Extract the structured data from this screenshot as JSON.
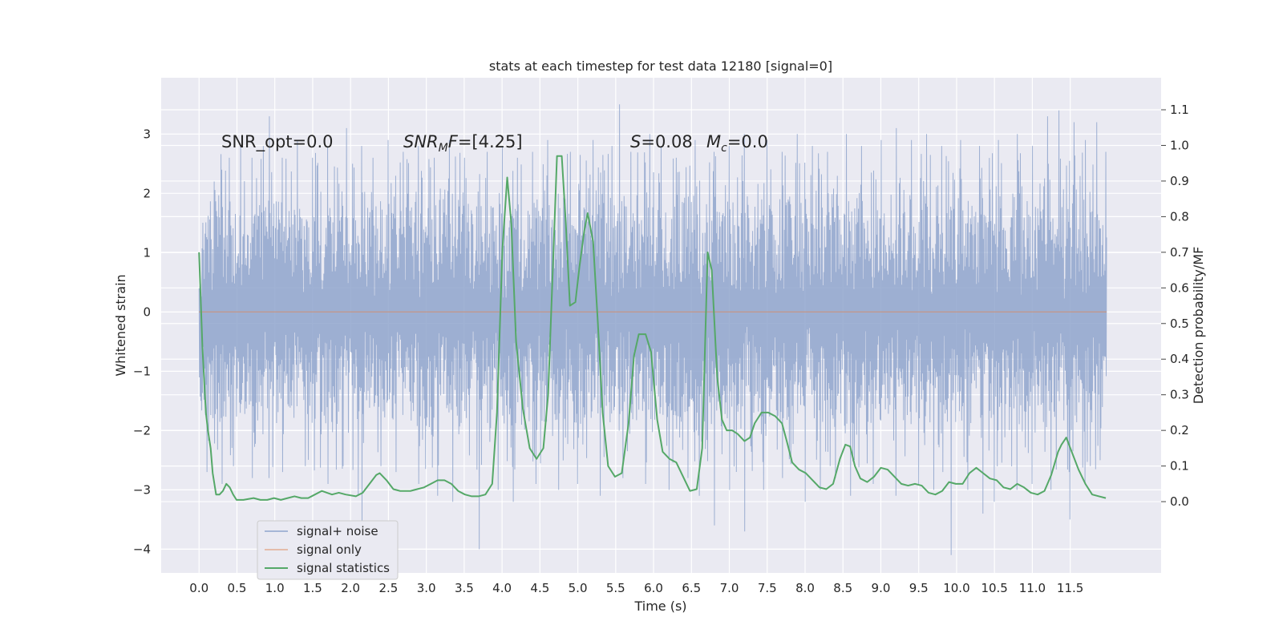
{
  "chart_data": {
    "type": "line",
    "title": "stats at each timestep for test data 12180 [signal=0]",
    "xlabel": "Time (s)",
    "ylabel": "Whitened strain",
    "y2label": "Detection probability/MF",
    "xlim": [
      -0.5,
      12.7
    ],
    "ylim": [
      -4.4,
      3.95
    ],
    "y2lim": [
      -0.2,
      1.19
    ],
    "xticks": [
      "0.0",
      "0.5",
      "1.0",
      "1.5",
      "2.0",
      "2.5",
      "3.0",
      "3.5",
      "4.0",
      "4.5",
      "5.0",
      "5.5",
      "6.0",
      "6.5",
      "7.0",
      "7.5",
      "8.0",
      "8.5",
      "9.0",
      "9.5",
      "10.0",
      "10.5",
      "11.0",
      "11.5"
    ],
    "yticks": [
      "3",
      "2",
      "1",
      "0",
      "−1",
      "−2",
      "−3",
      "−4"
    ],
    "y2ticks": [
      "1.1",
      "1.0",
      "0.9",
      "0.8",
      "0.7",
      "0.6",
      "0.5",
      "0.4",
      "0.3",
      "0.2",
      "0.1",
      "0.0"
    ],
    "grid": true,
    "legend_position": "lower-left",
    "legend": [
      "signal+ noise",
      "signal only",
      "signal statistics"
    ],
    "annotations": {
      "snr_opt": "SNR_opt=0.0",
      "snr_mf": "=[4.25]",
      "s_value": "=0.08",
      "mc_value": "=0.0"
    },
    "colors": {
      "noise": "#8fa4cc",
      "signal": "#dd8452",
      "stats": "#55a868",
      "background": "#eaeaf2",
      "grid": "#ffffff"
    },
    "series": [
      {
        "name": "signal+ noise",
        "axis": "left",
        "x_range": [
          0.0,
          11.98
        ],
        "typical_band": [
          -1.6,
          1.6
        ],
        "peaks_up": [
          [
            0.2,
            2.2
          ],
          [
            0.3,
            2.4
          ],
          [
            0.4,
            2.6
          ],
          [
            0.55,
            2.8
          ],
          [
            0.7,
            2.6
          ],
          [
            0.85,
            2.8
          ],
          [
            0.93,
            3.3
          ],
          [
            1.1,
            2.6
          ],
          [
            1.3,
            2.9
          ],
          [
            1.5,
            2.6
          ],
          [
            1.7,
            2.8
          ],
          [
            1.95,
            3.1
          ],
          [
            2.15,
            2.8
          ],
          [
            2.3,
            2.6
          ],
          [
            2.5,
            2.9
          ],
          [
            2.7,
            2.7
          ],
          [
            2.9,
            2.8
          ],
          [
            3.1,
            2.6
          ],
          [
            3.3,
            2.9
          ],
          [
            3.5,
            2.6
          ],
          [
            3.8,
            2.7
          ],
          [
            4.0,
            2.8
          ],
          [
            4.2,
            2.6
          ],
          [
            4.4,
            2.7
          ],
          [
            4.6,
            2.9
          ],
          [
            4.9,
            2.7
          ],
          [
            5.2,
            2.9
          ],
          [
            5.45,
            2.8
          ],
          [
            5.55,
            3.5
          ],
          [
            5.7,
            2.7
          ],
          [
            5.95,
            3.0
          ],
          [
            6.1,
            2.8
          ],
          [
            6.3,
            2.6
          ],
          [
            6.55,
            2.9
          ],
          [
            6.8,
            2.7
          ],
          [
            7.0,
            2.8
          ],
          [
            7.2,
            3.0
          ],
          [
            7.5,
            2.9
          ],
          [
            7.7,
            2.7
          ],
          [
            7.9,
            3.0
          ],
          [
            8.1,
            2.8
          ],
          [
            8.3,
            2.7
          ],
          [
            8.55,
            3.0
          ],
          [
            8.75,
            2.8
          ],
          [
            9.0,
            2.9
          ],
          [
            9.2,
            3.1
          ],
          [
            9.4,
            2.9
          ],
          [
            9.6,
            3.0
          ],
          [
            9.8,
            2.8
          ],
          [
            10.05,
            2.9
          ],
          [
            10.3,
            2.8
          ],
          [
            10.55,
            2.9
          ],
          [
            10.8,
            3.0
          ],
          [
            11.0,
            2.8
          ],
          [
            11.2,
            3.3
          ],
          [
            11.35,
            3.4
          ],
          [
            11.55,
            3.2
          ],
          [
            11.7,
            2.9
          ],
          [
            11.85,
            3.2
          ],
          [
            11.97,
            2.7
          ]
        ],
        "peaks_down": [
          [
            0.1,
            -2.7
          ],
          [
            0.3,
            -2.9
          ],
          [
            0.45,
            -2.6
          ],
          [
            0.7,
            -2.8
          ],
          [
            0.92,
            -2.8
          ],
          [
            1.1,
            -2.7
          ],
          [
            1.4,
            -2.6
          ],
          [
            1.7,
            -2.9
          ],
          [
            1.9,
            -2.6
          ],
          [
            2.1,
            -3.1
          ],
          [
            2.15,
            -3.6
          ],
          [
            2.4,
            -2.6
          ],
          [
            2.6,
            -2.7
          ],
          [
            2.9,
            -2.9
          ],
          [
            3.15,
            -3.1
          ],
          [
            3.35,
            -3.2
          ],
          [
            3.7,
            -4.0
          ],
          [
            3.95,
            -3.0
          ],
          [
            4.15,
            -3.2
          ],
          [
            4.45,
            -2.9
          ],
          [
            4.75,
            -3.0
          ],
          [
            5.0,
            -2.9
          ],
          [
            5.3,
            -3.1
          ],
          [
            5.6,
            -2.8
          ],
          [
            5.9,
            -2.9
          ],
          [
            6.2,
            -3.0
          ],
          [
            6.45,
            -2.8
          ],
          [
            6.6,
            -3.1
          ],
          [
            6.8,
            -3.6
          ],
          [
            7.0,
            -3.0
          ],
          [
            7.2,
            -3.7
          ],
          [
            7.45,
            -3.0
          ],
          [
            7.7,
            -2.8
          ],
          [
            8.0,
            -3.2
          ],
          [
            8.2,
            -3.0
          ],
          [
            8.4,
            -2.8
          ],
          [
            8.6,
            -3.1
          ],
          [
            8.9,
            -2.9
          ],
          [
            9.2,
            -3.1
          ],
          [
            9.5,
            -2.9
          ],
          [
            9.7,
            -3.0
          ],
          [
            9.93,
            -4.1
          ],
          [
            10.15,
            -3.0
          ],
          [
            10.35,
            -3.4
          ],
          [
            10.5,
            -3.2
          ],
          [
            10.8,
            -3.0
          ],
          [
            11.0,
            -2.9
          ],
          [
            11.25,
            -3.0
          ],
          [
            11.5,
            -3.5
          ],
          [
            11.7,
            -2.9
          ],
          [
            11.9,
            -2.5
          ]
        ]
      },
      {
        "name": "signal only",
        "axis": "left",
        "x": [
          0.0,
          11.98
        ],
        "y": [
          0.0,
          0.0
        ]
      },
      {
        "name": "signal statistics",
        "axis": "right",
        "points": [
          [
            0.0,
            0.7
          ],
          [
            0.05,
            0.43
          ],
          [
            0.1,
            0.25
          ],
          [
            0.13,
            0.2
          ],
          [
            0.17,
            0.15
          ],
          [
            0.2,
            0.08
          ],
          [
            0.25,
            0.02
          ],
          [
            0.3,
            0.02
          ],
          [
            0.35,
            0.03
          ],
          [
            0.4,
            0.05
          ],
          [
            0.45,
            0.04
          ],
          [
            0.5,
            0.02
          ],
          [
            0.55,
            0.005
          ],
          [
            0.65,
            0.005
          ],
          [
            0.8,
            0.01
          ],
          [
            0.9,
            0.005
          ],
          [
            1.0,
            0.005
          ],
          [
            1.1,
            0.01
          ],
          [
            1.2,
            0.005
          ],
          [
            1.3,
            0.01
          ],
          [
            1.4,
            0.015
          ],
          [
            1.5,
            0.01
          ],
          [
            1.6,
            0.01
          ],
          [
            1.7,
            0.02
          ],
          [
            1.8,
            0.03
          ],
          [
            1.95,
            0.02
          ],
          [
            2.05,
            0.025
          ],
          [
            2.15,
            0.02
          ],
          [
            2.3,
            0.015
          ],
          [
            2.4,
            0.025
          ],
          [
            2.5,
            0.05
          ],
          [
            2.6,
            0.075
          ],
          [
            2.65,
            0.08
          ],
          [
            2.75,
            0.06
          ],
          [
            2.85,
            0.035
          ],
          [
            2.95,
            0.03
          ],
          [
            3.1,
            0.03
          ],
          [
            3.2,
            0.035
          ],
          [
            3.3,
            0.04
          ],
          [
            3.4,
            0.05
          ],
          [
            3.5,
            0.06
          ],
          [
            3.6,
            0.06
          ],
          [
            3.7,
            0.05
          ],
          [
            3.8,
            0.03
          ],
          [
            3.9,
            0.02
          ],
          [
            4.0,
            0.015
          ],
          [
            4.1,
            0.015
          ],
          [
            4.2,
            0.02
          ],
          [
            4.3,
            0.05
          ],
          [
            4.37,
            0.25
          ],
          [
            4.45,
            0.71
          ],
          [
            4.52,
            0.91
          ],
          [
            4.58,
            0.78
          ],
          [
            4.65,
            0.45
          ],
          [
            4.75,
            0.26
          ],
          [
            4.85,
            0.15
          ],
          [
            4.95,
            0.12
          ],
          [
            5.05,
            0.15
          ],
          [
            5.12,
            0.3
          ],
          [
            5.2,
            0.71
          ],
          [
            5.25,
            0.97
          ],
          [
            5.32,
            0.97
          ],
          [
            5.38,
            0.78
          ],
          [
            5.44,
            0.55
          ],
          [
            5.52,
            0.56
          ],
          [
            5.58,
            0.66
          ],
          [
            5.65,
            0.76
          ],
          [
            5.7,
            0.81
          ],
          [
            5.78,
            0.73
          ],
          [
            5.85,
            0.5
          ],
          [
            5.92,
            0.25
          ],
          [
            6.0,
            0.1
          ],
          [
            6.1,
            0.07
          ],
          [
            6.2,
            0.08
          ],
          [
            6.3,
            0.22
          ],
          [
            6.38,
            0.41
          ],
          [
            6.45,
            0.47
          ],
          [
            6.55,
            0.47
          ],
          [
            6.63,
            0.42
          ],
          [
            6.72,
            0.23
          ],
          [
            6.8,
            0.14
          ],
          [
            6.9,
            0.12
          ],
          [
            7.0,
            0.11
          ],
          [
            7.1,
            0.07
          ],
          [
            7.2,
            0.03
          ],
          [
            7.3,
            0.035
          ],
          [
            7.38,
            0.15
          ],
          [
            7.46,
            0.7
          ],
          [
            7.52,
            0.65
          ],
          [
            7.6,
            0.35
          ],
          [
            7.67,
            0.23
          ],
          [
            7.74,
            0.2
          ],
          [
            7.82,
            0.2
          ],
          [
            7.9,
            0.19
          ],
          [
            8.0,
            0.17
          ],
          [
            8.08,
            0.18
          ],
          [
            8.15,
            0.22
          ],
          [
            8.25,
            0.25
          ],
          [
            8.35,
            0.25
          ],
          [
            8.45,
            0.24
          ],
          [
            8.55,
            0.22
          ],
          [
            8.62,
            0.17
          ],
          [
            8.7,
            0.11
          ],
          [
            8.8,
            0.09
          ],
          [
            8.9,
            0.08
          ],
          [
            9.0,
            0.06
          ],
          [
            9.1,
            0.04
          ],
          [
            9.2,
            0.035
          ],
          [
            9.3,
            0.05
          ],
          [
            9.4,
            0.12
          ],
          [
            9.48,
            0.16
          ],
          [
            9.55,
            0.155
          ],
          [
            9.62,
            0.1
          ],
          [
            9.7,
            0.065
          ],
          [
            9.8,
            0.055
          ],
          [
            9.9,
            0.07
          ],
          [
            10.0,
            0.095
          ],
          [
            10.1,
            0.09
          ],
          [
            10.2,
            0.07
          ],
          [
            10.3,
            0.05
          ],
          [
            10.4,
            0.045
          ],
          [
            10.5,
            0.05
          ],
          [
            10.6,
            0.045
          ],
          [
            10.7,
            0.025
          ],
          [
            10.8,
            0.02
          ],
          [
            10.9,
            0.03
          ],
          [
            11.0,
            0.055
          ],
          [
            11.1,
            0.05
          ],
          [
            11.2,
            0.05
          ],
          [
            11.3,
            0.08
          ],
          [
            11.4,
            0.095
          ],
          [
            11.5,
            0.08
          ],
          [
            11.6,
            0.065
          ],
          [
            11.7,
            0.06
          ],
          [
            11.8,
            0.04
          ],
          [
            11.9,
            0.035
          ],
          [
            12.0,
            0.05
          ],
          [
            12.1,
            0.04
          ],
          [
            12.2,
            0.025
          ],
          [
            12.3,
            0.02
          ],
          [
            12.4,
            0.03
          ],
          [
            12.5,
            0.075
          ],
          [
            12.6,
            0.14
          ],
          [
            12.65,
            0.16
          ],
          [
            12.72,
            0.18
          ],
          [
            12.8,
            0.14
          ],
          [
            12.9,
            0.09
          ],
          [
            13.0,
            0.05
          ],
          [
            13.1,
            0.02
          ],
          [
            13.2,
            0.015
          ],
          [
            13.3,
            0.01
          ]
        ],
        "x_scale": 0.9
      }
    ]
  }
}
